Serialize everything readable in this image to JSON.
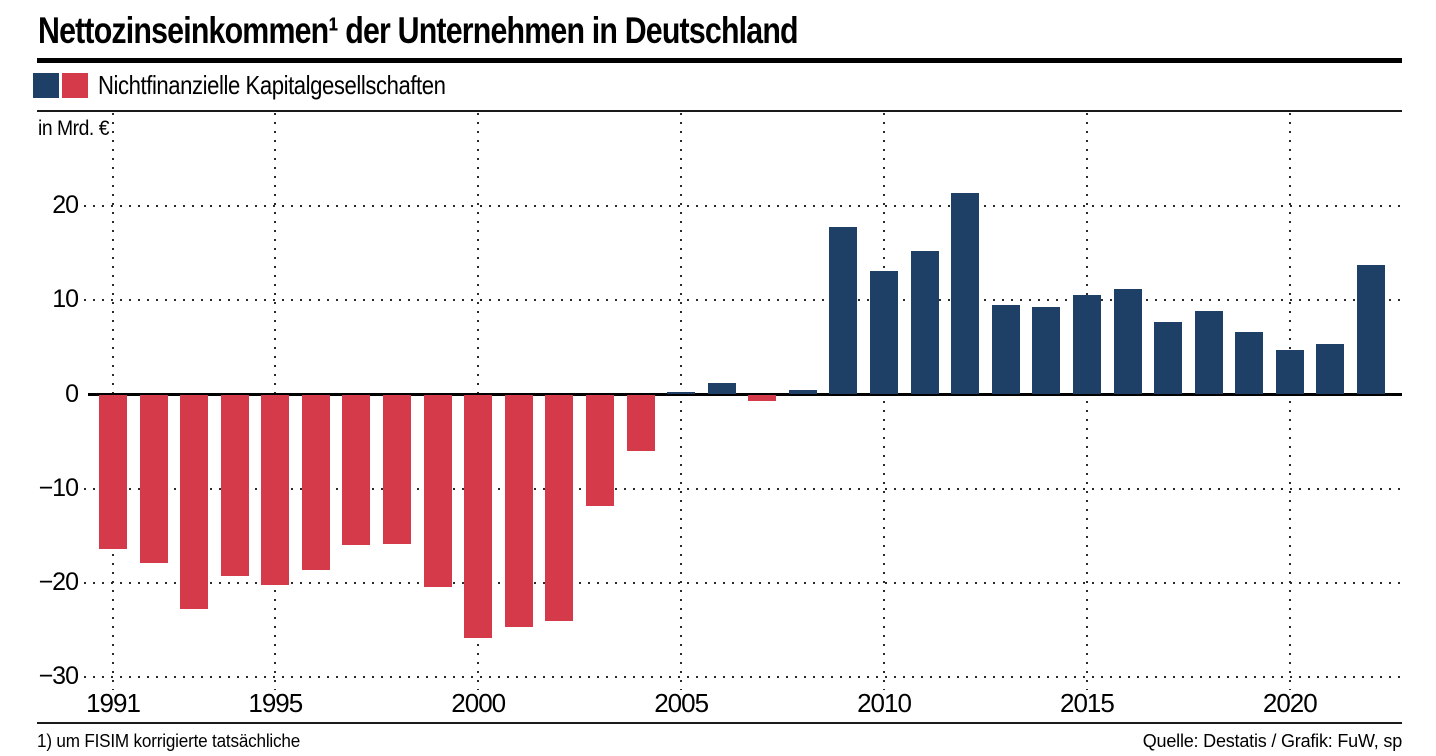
{
  "header": {
    "title": "Nettozinseinkommen¹ der Unternehmen in Deutschland"
  },
  "legend": {
    "label": "Nichtfinanzielle Kapitalgesellschaften"
  },
  "footer": {
    "footnote": "1) um FISIM korrigierte tatsächliche",
    "source": "Quelle: Destatis / Grafik: FuW, sp"
  },
  "chart_data": {
    "type": "bar",
    "title": "Nettozinseinkommen¹ der Unternehmen in Deutschland",
    "subtitle": "Nichtfinanzielle Kapitalgesellschaften",
    "ylabel": "in Mrd. €",
    "xlabel": "",
    "categories": [
      1991,
      1992,
      1993,
      1994,
      1995,
      1996,
      1997,
      1998,
      1999,
      2000,
      2001,
      2002,
      2003,
      2004,
      2005,
      2006,
      2007,
      2008,
      2009,
      2010,
      2011,
      2012,
      2013,
      2014,
      2015,
      2016,
      2017,
      2018,
      2019,
      2020,
      2021,
      2022
    ],
    "values": [
      -16.4,
      -17.9,
      -22.8,
      -19.3,
      -20.2,
      -18.6,
      -16.0,
      -15.9,
      -20.4,
      -25.9,
      -24.7,
      -24.0,
      -11.8,
      -6.0,
      0.3,
      1.2,
      -0.7,
      0.5,
      17.8,
      13.1,
      15.2,
      21.4,
      9.5,
      9.3,
      10.6,
      11.2,
      7.7,
      8.9,
      6.6,
      4.7,
      5.4,
      13.8
    ],
    "ylim": [
      -31.4,
      29.9
    ],
    "yticks": {
      "values": [
        20,
        10,
        0,
        -10,
        -20,
        -30
      ],
      "labels": [
        "20",
        "10",
        "0",
        "−10",
        "−20",
        "−30"
      ]
    },
    "xticks": [
      1991,
      1995,
      2000,
      2005,
      2010,
      2015,
      2020
    ],
    "grid": "dotted",
    "zero_line": true,
    "legend_position": "top-left",
    "colors": {
      "positive": "#1e3f66",
      "negative": "#d53a4b",
      "grid": "#2b2b2b",
      "axis": "#000000"
    }
  }
}
